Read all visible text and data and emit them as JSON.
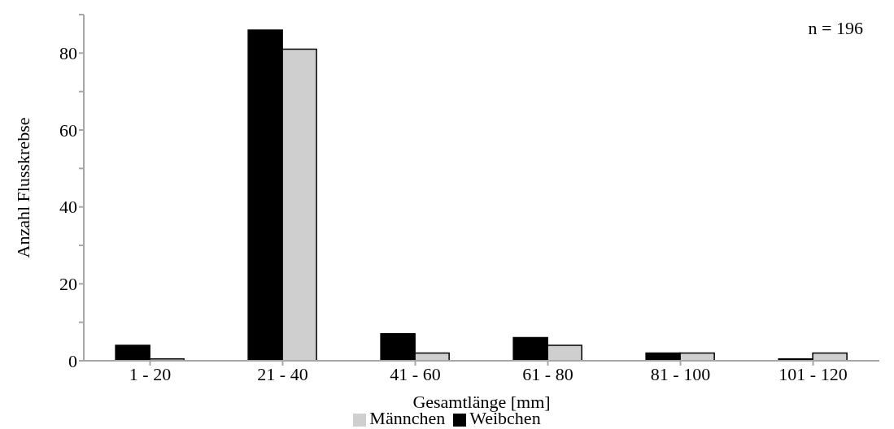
{
  "chart_data": {
    "type": "bar",
    "xlabel": "Gesamtlänge [mm]",
    "ylabel": "Anzahl Flusskrebse",
    "annotations": [
      "n = 196"
    ],
    "categories": [
      "1 - 20",
      "21 - 40",
      "41 - 60",
      "61 - 80",
      "81 - 100",
      "101 - 120"
    ],
    "series": [
      {
        "name": "Weibchen",
        "color": "#000000",
        "values": [
          4,
          86,
          7,
          6,
          2,
          0.5
        ]
      },
      {
        "name": "Männchen",
        "color": "#d0cfcf",
        "values": [
          0.5,
          81,
          2,
          4,
          2,
          2
        ]
      }
    ],
    "ylim": [
      0,
      90
    ],
    "yticks": [
      0,
      {
        "value": 10,
        "label": null
      },
      20,
      {
        "value": 30,
        "label": null
      },
      40,
      {
        "value": 50,
        "label": null
      },
      60,
      {
        "value": 70,
        "label": null
      },
      80,
      {
        "value": 90,
        "label": null
      }
    ],
    "grid": false,
    "legend": "bottom"
  }
}
